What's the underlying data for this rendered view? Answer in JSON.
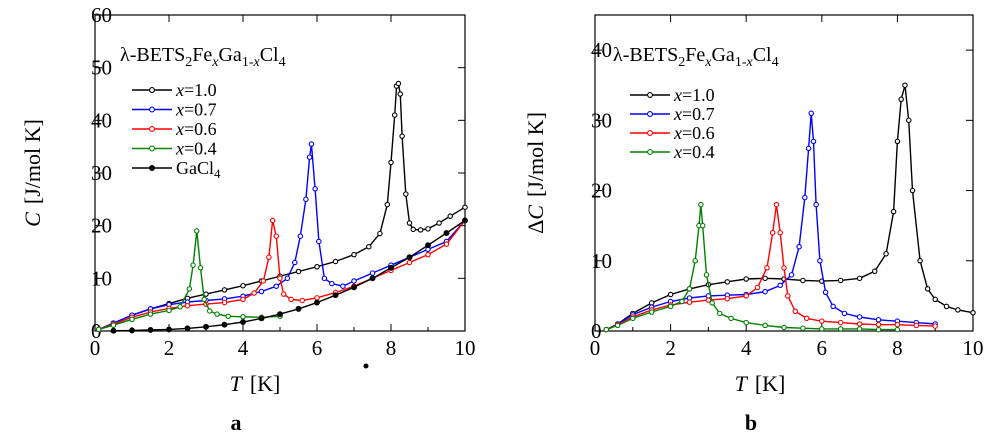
{
  "chart_data": [
    {
      "type": "line",
      "panel_label": "a",
      "title": {
        "prefix": "λ-BETS",
        "sub1": "2",
        "fe": "Fe",
        "x1": "x",
        "ga": "Ga",
        "sub2": "1-",
        "x2": "x",
        "cl": "Cl",
        "sub3": "4"
      },
      "xlabel": {
        "var": "T",
        "unit": "[K]"
      },
      "ylabel": {
        "var": "C",
        "unit": "[J/mol K]"
      },
      "xlim": [
        0,
        10
      ],
      "ylim": [
        0,
        60
      ],
      "xticks": [
        0,
        2,
        4,
        6,
        8,
        10
      ],
      "yticks": [
        0,
        10,
        20,
        30,
        40,
        50,
        60
      ],
      "series": [
        {
          "name": "x=1.0",
          "var": "x",
          "label": "=1.0",
          "color": "#000000",
          "x": [
            0.1,
            0.5,
            1.0,
            1.5,
            2.0,
            2.5,
            3.0,
            3.5,
            4.0,
            4.5,
            5.0,
            5.5,
            6.0,
            6.5,
            7.0,
            7.4,
            7.7,
            7.9,
            8.0,
            8.1,
            8.15,
            8.2,
            8.25,
            8.3,
            8.4,
            8.5,
            8.6,
            8.8,
            9.0,
            9.3,
            9.6,
            10.0
          ],
          "y": [
            0.3,
            1.5,
            3.0,
            4.2,
            5.2,
            6.2,
            7.0,
            7.8,
            8.6,
            9.5,
            10.4,
            11.3,
            12.2,
            13.2,
            14.5,
            16,
            18.5,
            24,
            32,
            41,
            46.5,
            47,
            45,
            37,
            26,
            20.5,
            19.3,
            19.2,
            19.4,
            20.5,
            21.8,
            23.5
          ]
        },
        {
          "name": "x=0.7",
          "var": "x",
          "label": "=0.7",
          "color": "#0000ff",
          "x": [
            0.1,
            0.5,
            1.0,
            1.5,
            2.0,
            2.5,
            3.0,
            3.5,
            4.0,
            4.5,
            4.9,
            5.2,
            5.4,
            5.55,
            5.7,
            5.8,
            5.85,
            5.95,
            6.05,
            6.2,
            6.4,
            6.7,
            7.0,
            7.5,
            8.0,
            8.5,
            9.0,
            9.5,
            10.0
          ],
          "y": [
            0.3,
            1.5,
            3.0,
            4.2,
            5.0,
            5.5,
            5.8,
            6.1,
            6.6,
            7.5,
            8.5,
            10,
            13,
            18,
            25,
            33,
            35.5,
            27,
            17,
            10,
            9,
            8.5,
            9.5,
            11,
            12.5,
            14,
            15.5,
            17,
            21
          ]
        },
        {
          "name": "x=0.6",
          "var": "x",
          "label": "=0.6",
          "color": "#ff0000",
          "x": [
            0.1,
            0.5,
            1.0,
            1.5,
            2.0,
            2.5,
            3.0,
            3.5,
            4.0,
            4.3,
            4.55,
            4.7,
            4.8,
            4.9,
            5.0,
            5.1,
            5.3,
            5.6,
            6.0,
            6.5,
            7.0,
            7.5,
            8.0,
            8.5,
            9.0,
            9.5,
            10.0
          ],
          "y": [
            0.3,
            1.3,
            2.6,
            3.6,
            4.3,
            4.8,
            5.1,
            5.4,
            6.0,
            7.2,
            9.5,
            14,
            21,
            18,
            10,
            7,
            6,
            5.8,
            6.3,
            7.3,
            8.5,
            10,
            11.5,
            13,
            14.5,
            16.5,
            21
          ]
        },
        {
          "name": "x=0.4",
          "var": "x",
          "label": "=0.4",
          "color": "#008000",
          "x": [
            0.1,
            0.5,
            1.0,
            1.5,
            2.0,
            2.3,
            2.55,
            2.65,
            2.75,
            2.85,
            2.95,
            3.1,
            3.3,
            3.6,
            4.0,
            4.5,
            5.0
          ],
          "y": [
            0.3,
            1.1,
            2.2,
            3.2,
            3.9,
            4.6,
            8,
            12.5,
            19,
            12,
            6,
            3.8,
            3.2,
            2.8,
            2.7,
            2.6,
            2.8
          ]
        },
        {
          "name": "GaCl4",
          "label": "GaCl",
          "sub": "4",
          "color": "#000000",
          "filled": true,
          "x": [
            0.5,
            1.0,
            1.5,
            2.0,
            2.5,
            3.0,
            3.5,
            4.0,
            4.5,
            5.0,
            5.5,
            6.0,
            6.5,
            7.0,
            7.5,
            8.0,
            8.5,
            9.0,
            9.5,
            10.0
          ],
          "y": [
            0.05,
            0.1,
            0.2,
            0.3,
            0.5,
            0.8,
            1.2,
            1.7,
            2.4,
            3.2,
            4.2,
            5.4,
            6.8,
            8.3,
            10,
            12,
            14,
            16.3,
            18.6,
            21
          ]
        }
      ]
    },
    {
      "type": "line",
      "panel_label": "b",
      "title": {
        "prefix": "λ-BETS",
        "sub1": "2",
        "fe": "Fe",
        "x1": "x",
        "ga": "Ga",
        "sub2": "1-",
        "x2": "x",
        "cl": "Cl",
        "sub3": "4"
      },
      "xlabel": {
        "var": "T",
        "unit": "[K]"
      },
      "ylabel": {
        "delta": "Δ",
        "var": "C",
        "unit": "[J/mol K]"
      },
      "xlim": [
        0,
        10
      ],
      "ylim": [
        0,
        45
      ],
      "xticks": [
        0,
        2,
        4,
        6,
        8,
        10
      ],
      "yticks": [
        0,
        10,
        20,
        30,
        40
      ],
      "series": [
        {
          "name": "x=1.0",
          "var": "x",
          "label": "=1.0",
          "color": "#000000",
          "x": [
            0.3,
            0.6,
            1.0,
            1.5,
            2.0,
            2.5,
            3.0,
            3.5,
            4.0,
            4.5,
            5.0,
            5.5,
            6.0,
            6.5,
            7.0,
            7.4,
            7.7,
            7.9,
            8.0,
            8.1,
            8.2,
            8.3,
            8.4,
            8.6,
            8.8,
            9.0,
            9.3,
            9.6,
            10.0
          ],
          "y": [
            0.2,
            1.0,
            2.5,
            4.0,
            5.2,
            6.0,
            6.6,
            7.0,
            7.4,
            7.5,
            7.4,
            7.2,
            7.1,
            7.2,
            7.5,
            8.5,
            11,
            17,
            27,
            33,
            35,
            30,
            20,
            10,
            6,
            4.5,
            3.5,
            3.0,
            2.6
          ]
        },
        {
          "name": "x=0.7",
          "var": "x",
          "label": "=0.7",
          "color": "#0000ff",
          "x": [
            0.3,
            0.6,
            1.0,
            1.5,
            2.0,
            2.5,
            3.0,
            3.5,
            4.0,
            4.5,
            4.9,
            5.2,
            5.4,
            5.55,
            5.65,
            5.72,
            5.78,
            5.85,
            5.95,
            6.1,
            6.3,
            6.6,
            7.0,
            7.5,
            8.0,
            8.5,
            9.0
          ],
          "y": [
            0.2,
            1.0,
            2.3,
            3.4,
            4.2,
            4.7,
            5.0,
            5.1,
            5.2,
            5.6,
            6.5,
            8,
            12,
            19,
            26,
            31,
            27,
            18,
            10,
            5.5,
            3.5,
            2.5,
            2.0,
            1.6,
            1.4,
            1.2,
            1.0
          ]
        },
        {
          "name": "x=0.6",
          "var": "x",
          "label": "=0.6",
          "color": "#ff0000",
          "x": [
            0.3,
            0.6,
            1.0,
            1.5,
            2.0,
            2.5,
            3.0,
            3.5,
            4.0,
            4.3,
            4.55,
            4.7,
            4.8,
            4.9,
            5.0,
            5.1,
            5.3,
            5.6,
            6.0,
            6.5,
            7.0,
            7.5,
            8.0,
            8.5,
            9.0
          ],
          "y": [
            0.2,
            0.9,
            2.0,
            3.0,
            3.7,
            4.1,
            4.4,
            4.6,
            5.0,
            6.2,
            9,
            14,
            18,
            14,
            9,
            5,
            2.8,
            1.8,
            1.4,
            1.2,
            1.0,
            0.9,
            0.9,
            0.8,
            0.7
          ]
        },
        {
          "name": "x=0.4",
          "var": "x",
          "label": "=0.4",
          "color": "#008000",
          "x": [
            0.3,
            0.6,
            1.0,
            1.5,
            2.0,
            2.3,
            2.5,
            2.65,
            2.75,
            2.8,
            2.85,
            2.95,
            3.1,
            3.3,
            3.6,
            4.0,
            4.5,
            5.0,
            5.5,
            6.0,
            6.5,
            7.0,
            7.5,
            8.0
          ],
          "y": [
            0.2,
            0.8,
            1.8,
            2.7,
            3.5,
            4.2,
            6,
            10,
            15,
            18,
            15,
            8,
            4,
            2.5,
            1.8,
            1.2,
            0.8,
            0.5,
            0.4,
            0.3,
            0.3,
            0.3,
            0.2,
            0.2
          ]
        }
      ]
    }
  ]
}
